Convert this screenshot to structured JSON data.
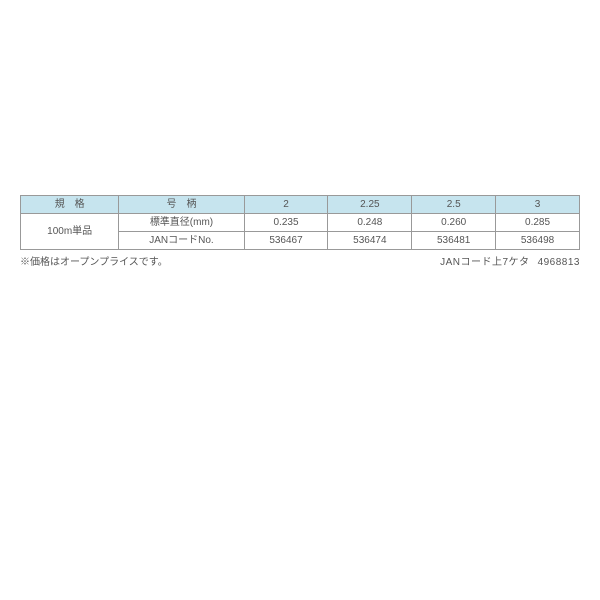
{
  "table": {
    "header_bg": "#c6e4ee",
    "border_color": "#999999",
    "text_color": "#555555",
    "font_size": 10,
    "columns": {
      "spec_label": "規　格",
      "gou_label": "号　柄",
      "values_header": [
        "2",
        "2.25",
        "2.5",
        "3"
      ]
    },
    "spec_value": "100m単品",
    "rows": [
      {
        "label": "標準直径(mm)",
        "values": [
          "0.235",
          "0.248",
          "0.260",
          "0.285"
        ]
      },
      {
        "label": "JANコードNo.",
        "values": [
          "536467",
          "536474",
          "536481",
          "536498"
        ]
      }
    ]
  },
  "footer": {
    "left": "※価格はオープンプライスです。",
    "right_label": "JANコード上7ケタ",
    "right_value": "4968813"
  }
}
